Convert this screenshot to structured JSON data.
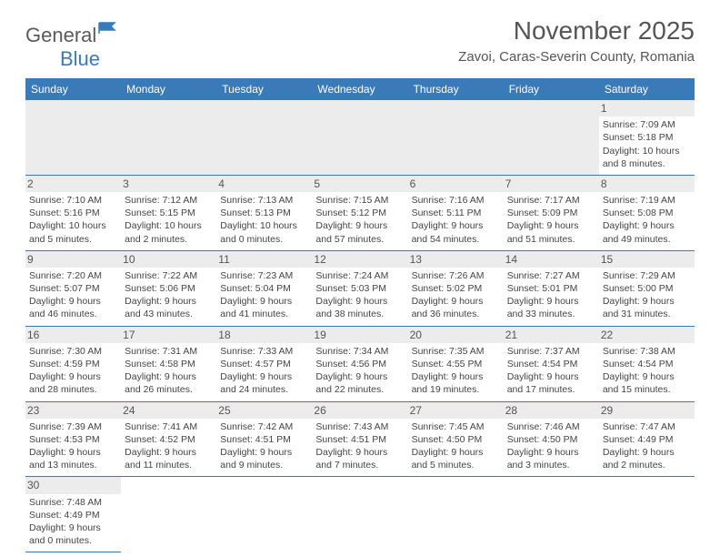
{
  "logo": {
    "text1": "General",
    "text2": "Blue"
  },
  "title": "November 2025",
  "location": "Zavoi, Caras-Severin County, Romania",
  "day_headers": [
    "Sunday",
    "Monday",
    "Tuesday",
    "Wednesday",
    "Thursday",
    "Friday",
    "Saturday"
  ],
  "colors": {
    "header_bg": "#3a7ab8",
    "header_text": "#ffffff",
    "daynum_bg": "#ececec",
    "border": "#3a7ab8"
  },
  "weeks": [
    [
      null,
      null,
      null,
      null,
      null,
      null,
      {
        "n": "1",
        "sunrise": "Sunrise: 7:09 AM",
        "sunset": "Sunset: 5:18 PM",
        "daylight": "Daylight: 10 hours and 8 minutes."
      }
    ],
    [
      {
        "n": "2",
        "sunrise": "Sunrise: 7:10 AM",
        "sunset": "Sunset: 5:16 PM",
        "daylight": "Daylight: 10 hours and 5 minutes."
      },
      {
        "n": "3",
        "sunrise": "Sunrise: 7:12 AM",
        "sunset": "Sunset: 5:15 PM",
        "daylight": "Daylight: 10 hours and 2 minutes."
      },
      {
        "n": "4",
        "sunrise": "Sunrise: 7:13 AM",
        "sunset": "Sunset: 5:13 PM",
        "daylight": "Daylight: 10 hours and 0 minutes."
      },
      {
        "n": "5",
        "sunrise": "Sunrise: 7:15 AM",
        "sunset": "Sunset: 5:12 PM",
        "daylight": "Daylight: 9 hours and 57 minutes."
      },
      {
        "n": "6",
        "sunrise": "Sunrise: 7:16 AM",
        "sunset": "Sunset: 5:11 PM",
        "daylight": "Daylight: 9 hours and 54 minutes."
      },
      {
        "n": "7",
        "sunrise": "Sunrise: 7:17 AM",
        "sunset": "Sunset: 5:09 PM",
        "daylight": "Daylight: 9 hours and 51 minutes."
      },
      {
        "n": "8",
        "sunrise": "Sunrise: 7:19 AM",
        "sunset": "Sunset: 5:08 PM",
        "daylight": "Daylight: 9 hours and 49 minutes."
      }
    ],
    [
      {
        "n": "9",
        "sunrise": "Sunrise: 7:20 AM",
        "sunset": "Sunset: 5:07 PM",
        "daylight": "Daylight: 9 hours and 46 minutes."
      },
      {
        "n": "10",
        "sunrise": "Sunrise: 7:22 AM",
        "sunset": "Sunset: 5:06 PM",
        "daylight": "Daylight: 9 hours and 43 minutes."
      },
      {
        "n": "11",
        "sunrise": "Sunrise: 7:23 AM",
        "sunset": "Sunset: 5:04 PM",
        "daylight": "Daylight: 9 hours and 41 minutes."
      },
      {
        "n": "12",
        "sunrise": "Sunrise: 7:24 AM",
        "sunset": "Sunset: 5:03 PM",
        "daylight": "Daylight: 9 hours and 38 minutes."
      },
      {
        "n": "13",
        "sunrise": "Sunrise: 7:26 AM",
        "sunset": "Sunset: 5:02 PM",
        "daylight": "Daylight: 9 hours and 36 minutes."
      },
      {
        "n": "14",
        "sunrise": "Sunrise: 7:27 AM",
        "sunset": "Sunset: 5:01 PM",
        "daylight": "Daylight: 9 hours and 33 minutes."
      },
      {
        "n": "15",
        "sunrise": "Sunrise: 7:29 AM",
        "sunset": "Sunset: 5:00 PM",
        "daylight": "Daylight: 9 hours and 31 minutes."
      }
    ],
    [
      {
        "n": "16",
        "sunrise": "Sunrise: 7:30 AM",
        "sunset": "Sunset: 4:59 PM",
        "daylight": "Daylight: 9 hours and 28 minutes."
      },
      {
        "n": "17",
        "sunrise": "Sunrise: 7:31 AM",
        "sunset": "Sunset: 4:58 PM",
        "daylight": "Daylight: 9 hours and 26 minutes."
      },
      {
        "n": "18",
        "sunrise": "Sunrise: 7:33 AM",
        "sunset": "Sunset: 4:57 PM",
        "daylight": "Daylight: 9 hours and 24 minutes."
      },
      {
        "n": "19",
        "sunrise": "Sunrise: 7:34 AM",
        "sunset": "Sunset: 4:56 PM",
        "daylight": "Daylight: 9 hours and 22 minutes."
      },
      {
        "n": "20",
        "sunrise": "Sunrise: 7:35 AM",
        "sunset": "Sunset: 4:55 PM",
        "daylight": "Daylight: 9 hours and 19 minutes."
      },
      {
        "n": "21",
        "sunrise": "Sunrise: 7:37 AM",
        "sunset": "Sunset: 4:54 PM",
        "daylight": "Daylight: 9 hours and 17 minutes."
      },
      {
        "n": "22",
        "sunrise": "Sunrise: 7:38 AM",
        "sunset": "Sunset: 4:54 PM",
        "daylight": "Daylight: 9 hours and 15 minutes."
      }
    ],
    [
      {
        "n": "23",
        "sunrise": "Sunrise: 7:39 AM",
        "sunset": "Sunset: 4:53 PM",
        "daylight": "Daylight: 9 hours and 13 minutes."
      },
      {
        "n": "24",
        "sunrise": "Sunrise: 7:41 AM",
        "sunset": "Sunset: 4:52 PM",
        "daylight": "Daylight: 9 hours and 11 minutes."
      },
      {
        "n": "25",
        "sunrise": "Sunrise: 7:42 AM",
        "sunset": "Sunset: 4:51 PM",
        "daylight": "Daylight: 9 hours and 9 minutes."
      },
      {
        "n": "26",
        "sunrise": "Sunrise: 7:43 AM",
        "sunset": "Sunset: 4:51 PM",
        "daylight": "Daylight: 9 hours and 7 minutes."
      },
      {
        "n": "27",
        "sunrise": "Sunrise: 7:45 AM",
        "sunset": "Sunset: 4:50 PM",
        "daylight": "Daylight: 9 hours and 5 minutes."
      },
      {
        "n": "28",
        "sunrise": "Sunrise: 7:46 AM",
        "sunset": "Sunset: 4:50 PM",
        "daylight": "Daylight: 9 hours and 3 minutes."
      },
      {
        "n": "29",
        "sunrise": "Sunrise: 7:47 AM",
        "sunset": "Sunset: 4:49 PM",
        "daylight": "Daylight: 9 hours and 2 minutes."
      }
    ],
    [
      {
        "n": "30",
        "sunrise": "Sunrise: 7:48 AM",
        "sunset": "Sunset: 4:49 PM",
        "daylight": "Daylight: 9 hours and 0 minutes."
      },
      null,
      null,
      null,
      null,
      null,
      null
    ]
  ]
}
